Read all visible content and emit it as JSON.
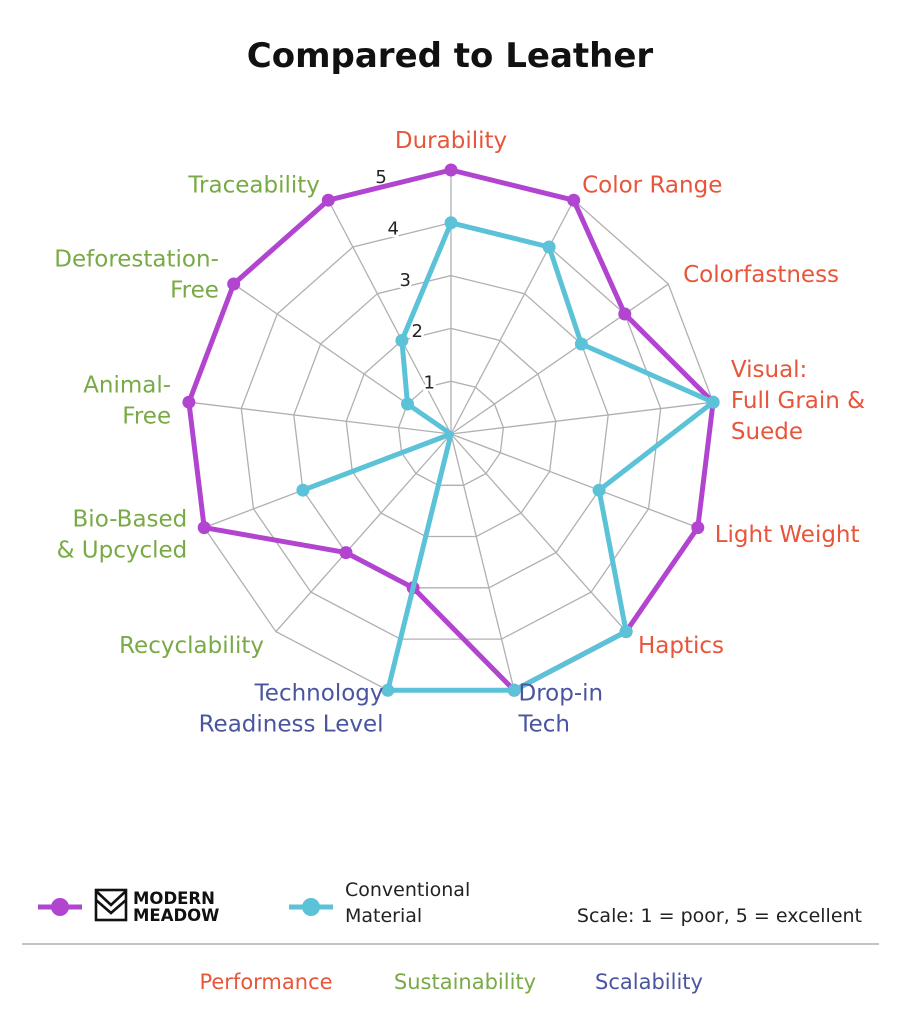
{
  "chart_data": {
    "type": "radar",
    "title": "Compared to Leather",
    "rlim": [
      0,
      5
    ],
    "r_ticks": [
      1,
      2,
      3,
      4,
      5
    ],
    "axes": [
      {
        "label": "Durability",
        "group": "Performance"
      },
      {
        "label": "Color Range",
        "group": "Performance"
      },
      {
        "label": "Colorfastness",
        "group": "Performance"
      },
      {
        "label": "Visual:\nFull Grain &\nSuede",
        "group": "Performance"
      },
      {
        "label": "Light Weight",
        "group": "Performance"
      },
      {
        "label": "Haptics",
        "group": "Performance"
      },
      {
        "label": "Drop-in\nTech",
        "group": "Scalability"
      },
      {
        "label": "Technology\nReadiness Level",
        "group": "Scalability"
      },
      {
        "label": "Recyclability",
        "group": "Sustainability"
      },
      {
        "label": "Bio-Based\n& Upcycled",
        "group": "Sustainability"
      },
      {
        "label": "Animal-\nFree",
        "group": "Sustainability"
      },
      {
        "label": "Deforestation-\nFree",
        "group": "Sustainability"
      },
      {
        "label": "Traceability",
        "group": "Sustainability"
      }
    ],
    "series": [
      {
        "name": "MODERN MEADOW",
        "color": "#b245d0",
        "values": [
          5,
          5,
          4,
          5,
          5,
          5,
          5,
          3,
          3,
          5,
          5,
          5,
          5
        ]
      },
      {
        "name": "Conventional Material",
        "color": "#5bc2d8",
        "values": [
          4,
          4,
          3,
          5,
          3,
          5,
          5,
          5,
          0,
          3,
          0,
          1,
          2
        ]
      }
    ]
  },
  "groups": {
    "Performance": "#e8553a",
    "Sustainability": "#78aa45",
    "Scalability": "#4a55a0"
  },
  "grid_color": "#b0b0b0",
  "legend": {
    "brand_line1": "MODERN",
    "brand_line2": "MEADOW",
    "conventional_line1": "Conventional",
    "conventional_line2": "Material",
    "scale_note": "Scale: 1 = poor, 5 = excellent"
  },
  "categories_legend": [
    "Performance",
    "Sustainability",
    "Scalability"
  ]
}
